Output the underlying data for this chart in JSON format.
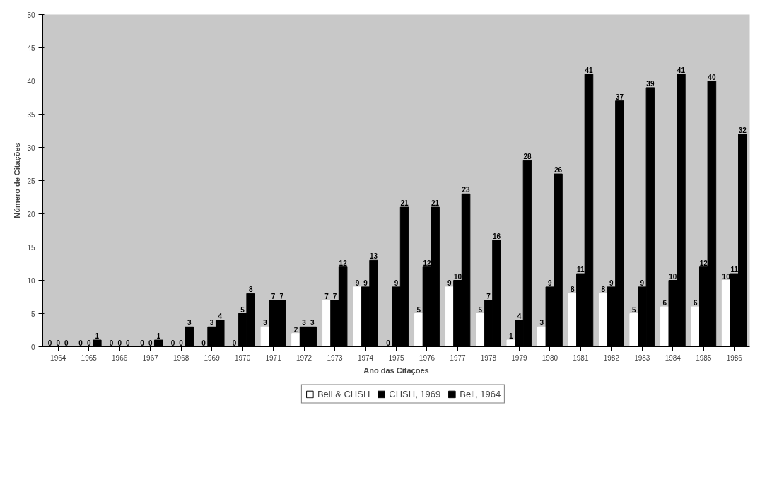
{
  "chart_data": {
    "type": "bar",
    "xlabel": "Ano das Citações",
    "ylabel": "Número de Citações",
    "categories": [
      "1964",
      "1965",
      "1966",
      "1967",
      "1968",
      "1969",
      "1970",
      "1971",
      "1972",
      "1973",
      "1974",
      "1975",
      "1976",
      "1977",
      "1978",
      "1979",
      "1980",
      "1981",
      "1982",
      "1983",
      "1984",
      "1985",
      "1986"
    ],
    "series": [
      {
        "name": "Bell & CHSH",
        "color": "#ffffff",
        "values": [
          0,
          0,
          0,
          0,
          0,
          0,
          0,
          3,
          2,
          7,
          9,
          0,
          5,
          9,
          5,
          1,
          3,
          8,
          8,
          5,
          6,
          6,
          10
        ]
      },
      {
        "name": "CHSH, 1969",
        "color": "#000000",
        "values": [
          0,
          0,
          0,
          0,
          0,
          3,
          5,
          7,
          3,
          7,
          9,
          9,
          12,
          10,
          7,
          4,
          9,
          11,
          9,
          9,
          10,
          12,
          11
        ]
      },
      {
        "name": "Bell, 1964",
        "color": "#000000",
        "values": [
          0,
          1,
          0,
          1,
          3,
          4,
          8,
          7,
          3,
          12,
          13,
          21,
          21,
          23,
          16,
          28,
          26,
          41,
          37,
          39,
          41,
          40,
          32
        ]
      }
    ],
    "ylim": [
      0,
      50
    ],
    "yticks": [
      0,
      5,
      10,
      15,
      20,
      25,
      30,
      35,
      40,
      45,
      50
    ],
    "data_labels": true,
    "grid": false,
    "legend": "bottom"
  }
}
